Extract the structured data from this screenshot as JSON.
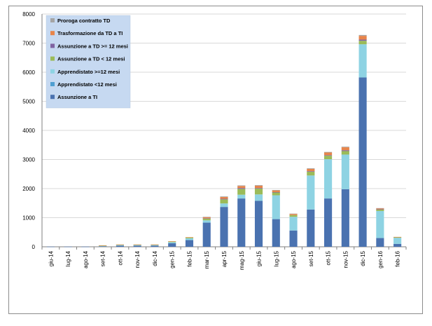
{
  "chart_data": {
    "type": "bar",
    "stacked": true,
    "ylim": [
      0,
      8000
    ],
    "yticks": [
      0,
      1000,
      2000,
      3000,
      4000,
      5000,
      6000,
      7000,
      8000
    ],
    "grid": true,
    "legend_position": "top-left",
    "categories": [
      "giu-14",
      "lug-14",
      "ago-14",
      "set-14",
      "ott-14",
      "nov-14",
      "dic-14",
      "gen-15",
      "feb-15",
      "mar-15",
      "apr-15",
      "mag-15",
      "giu-15",
      "lug-15",
      "ago-15",
      "set-15",
      "ott-15",
      "nov-15",
      "dic-15",
      "gen-16",
      "feb-16"
    ],
    "series": [
      {
        "name": "Assunzione a TI",
        "color": "#4a72b0",
        "values": [
          5,
          5,
          5,
          20,
          40,
          40,
          40,
          120,
          230,
          830,
          1370,
          1660,
          1580,
          950,
          560,
          1280,
          1660,
          1980,
          5820,
          300,
          100
        ]
      },
      {
        "name": "Apprendistato <12 mesi",
        "color": "#4f9fd1",
        "values": [
          0,
          0,
          0,
          0,
          0,
          0,
          0,
          0,
          0,
          0,
          0,
          0,
          0,
          0,
          0,
          0,
          0,
          0,
          0,
          0,
          0
        ]
      },
      {
        "name": "Apprendistato  >=12 mesi",
        "color": "#8ed3e3",
        "values": [
          0,
          0,
          0,
          10,
          20,
          20,
          20,
          40,
          60,
          80,
          120,
          130,
          220,
          820,
          470,
          1170,
          1350,
          1190,
          1140,
          930,
          210
        ]
      },
      {
        "name": "Assunzione a TD < 12 mesi",
        "color": "#9bbb59",
        "values": [
          0,
          0,
          0,
          10,
          10,
          10,
          10,
          20,
          30,
          60,
          140,
          200,
          200,
          100,
          60,
          130,
          120,
          120,
          120,
          50,
          20
        ]
      },
      {
        "name": "Assunzione a TD >= 12 mesi",
        "color": "#8064a2",
        "values": [
          0,
          0,
          0,
          0,
          0,
          0,
          0,
          0,
          0,
          10,
          20,
          30,
          20,
          10,
          0,
          20,
          20,
          30,
          40,
          10,
          0
        ]
      },
      {
        "name": "Trasformazione da TD a TI",
        "color": "#e8854a",
        "values": [
          0,
          0,
          0,
          10,
          10,
          10,
          10,
          10,
          10,
          40,
          60,
          70,
          80,
          60,
          40,
          80,
          90,
          100,
          130,
          30,
          10
        ]
      },
      {
        "name": "Proroga contratto TD",
        "color": "#a5a5a5",
        "values": [
          0,
          0,
          0,
          0,
          0,
          0,
          0,
          0,
          0,
          10,
          20,
          20,
          20,
          10,
          10,
          20,
          20,
          20,
          30,
          10,
          0
        ]
      }
    ],
    "legend_order": [
      "Proroga contratto TD",
      "Trasformazione da TD a TI",
      "Assunzione a TD >= 12 mesi",
      "Assunzione a TD < 12 mesi",
      "Apprendistato  >=12 mesi",
      "Apprendistato <12 mesi",
      "Assunzione a TI"
    ]
  }
}
